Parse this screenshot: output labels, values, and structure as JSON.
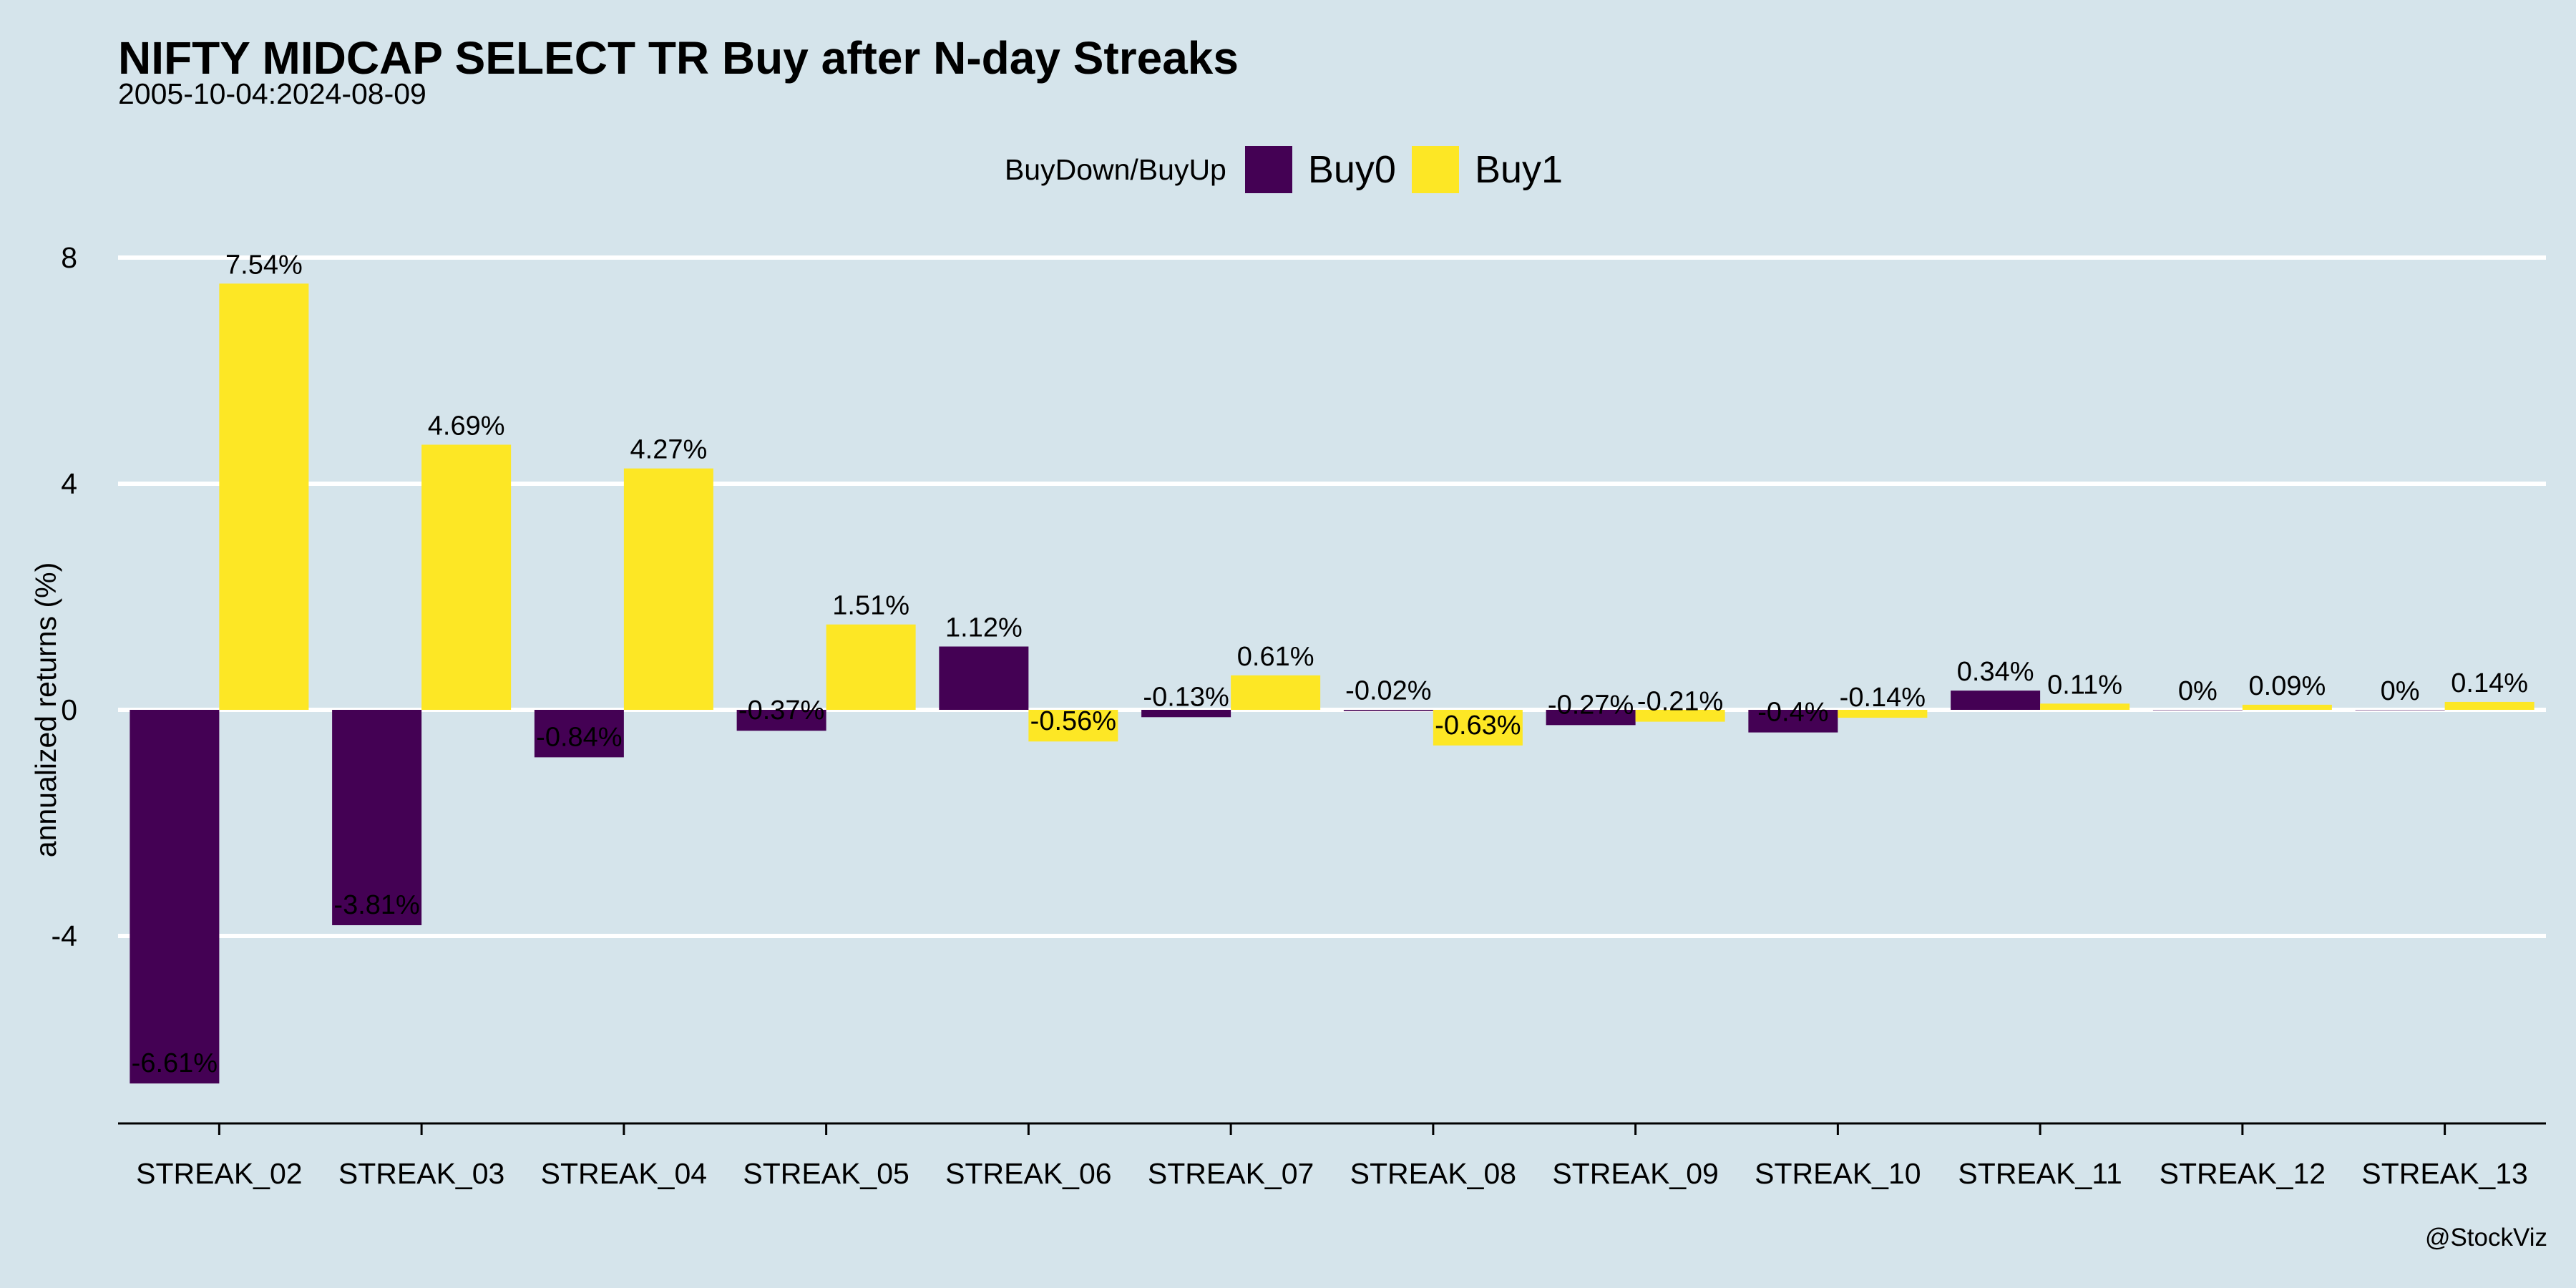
{
  "chart_data": {
    "type": "bar",
    "title": "NIFTY MIDCAP SELECT TR Buy after N-day Streaks",
    "subtitle": "2005-10-04:2024-08-09",
    "xlabel": "",
    "ylabel": "annualized returns (%)",
    "ylim": [
      -7.35,
      8.0
    ],
    "yticks": [
      -4,
      0,
      4,
      8
    ],
    "grid": true,
    "legend": {
      "title": "BuyDown/BuyUp",
      "placement": "top-center"
    },
    "categories": [
      "STREAK_02",
      "STREAK_03",
      "STREAK_04",
      "STREAK_05",
      "STREAK_06",
      "STREAK_07",
      "STREAK_08",
      "STREAK_09",
      "STREAK_10",
      "STREAK_11",
      "STREAK_12",
      "STREAK_13"
    ],
    "series": [
      {
        "name": "Buy0",
        "color": "#440154",
        "values": [
          -6.61,
          -3.81,
          -0.84,
          -0.37,
          1.12,
          -0.13,
          -0.02,
          -0.27,
          -0.4,
          0.34,
          0,
          0
        ],
        "labels": [
          "-6.61%",
          "-3.81%",
          "-0.84%",
          "-0.37%",
          "1.12%",
          "-0.13%",
          "-0.02%",
          "-0.27%",
          "-0.4%",
          "0.34%",
          "0%",
          "0%"
        ]
      },
      {
        "name": "Buy1",
        "color": "#fde725",
        "values": [
          7.54,
          4.69,
          4.27,
          1.51,
          -0.56,
          0.61,
          -0.63,
          -0.21,
          -0.14,
          0.11,
          0.09,
          0.14
        ],
        "labels": [
          "7.54%",
          "4.69%",
          "4.27%",
          "1.51%",
          "-0.56%",
          "0.61%",
          "-0.63%",
          "-0.21%",
          "-0.14%",
          "0.11%",
          "0.09%",
          "0.14%"
        ]
      }
    ]
  },
  "watermark": "@StockViz",
  "colors": {
    "background": "#d5e4eb",
    "grid": "#ffffff",
    "axis": "#000000"
  }
}
